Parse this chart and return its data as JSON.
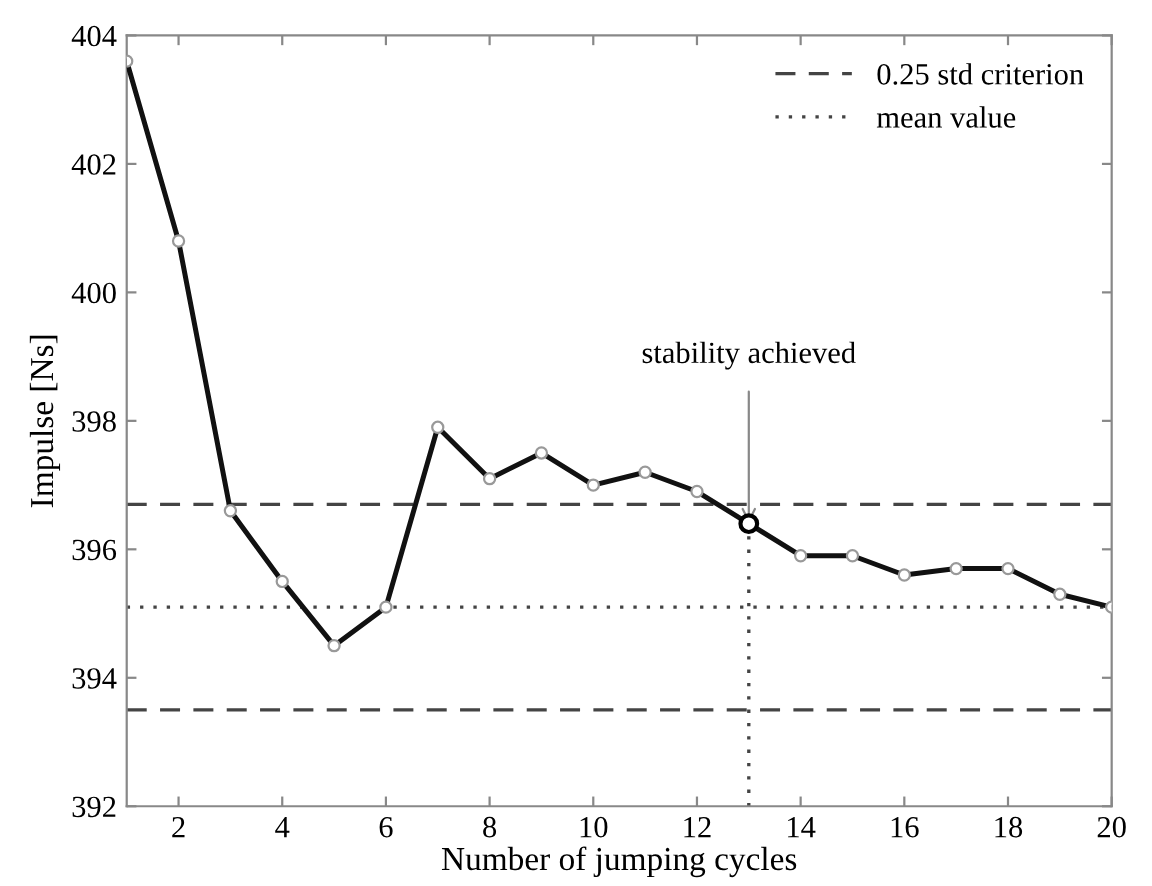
{
  "chart_data": {
    "type": "line",
    "xlabel": "Number of jumping cycles",
    "ylabel": "Impulse [Ns]",
    "x": [
      1,
      2,
      3,
      4,
      5,
      6,
      7,
      8,
      9,
      10,
      11,
      12,
      13,
      14,
      15,
      16,
      17,
      18,
      19,
      20
    ],
    "series": [
      {
        "color": "#111111",
        "values": [
          403.6,
          400.8,
          396.6,
          395.5,
          394.5,
          395.1,
          397.9,
          397.1,
          397.5,
          397.0,
          397.2,
          396.9,
          396.4,
          395.9,
          395.9,
          395.6,
          395.7,
          395.7,
          395.3,
          395.1
        ]
      }
    ],
    "marker": "circle",
    "line_style": "solid",
    "xlim": [
      1,
      20
    ],
    "xticks": [
      2,
      4,
      6,
      8,
      10,
      12,
      14,
      16,
      18,
      20
    ],
    "ylim": [
      392,
      404
    ],
    "yticks": [
      392,
      394,
      396,
      398,
      400,
      402,
      404
    ],
    "ref_lines": [
      {
        "axis": "y",
        "value": 396.7,
        "label": "0.25 std criterion",
        "line_style": "dashed",
        "color": "#444444"
      },
      {
        "axis": "y",
        "value": 393.5,
        "line_style": "dashed",
        "color": "#444444"
      },
      {
        "axis": "y",
        "value": 395.1,
        "label": "mean value",
        "line_style": "dotted",
        "color": "#444444"
      },
      {
        "axis": "x",
        "value": 13,
        "line_style": "dotted",
        "color": "#444444"
      }
    ],
    "annotations": [
      {
        "text": "stability achieved",
        "x": 13,
        "y": 396.4
      }
    ],
    "grid": false,
    "legend": "top right"
  }
}
